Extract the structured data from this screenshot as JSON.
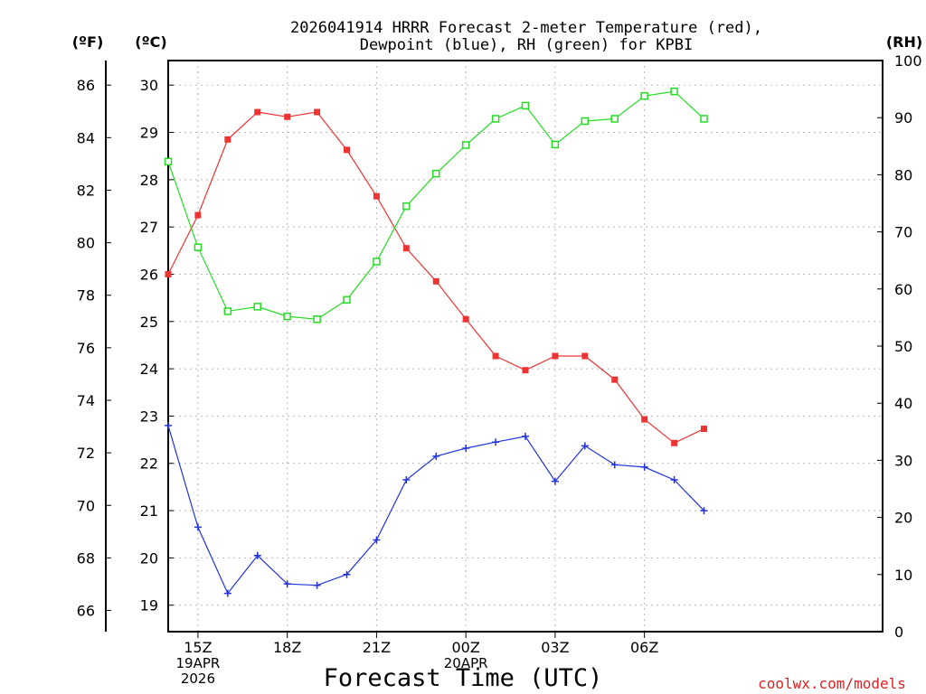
{
  "chart_data": {
    "type": "line",
    "title_lines": [
      "2026041914 HRRR Forecast 2-meter Temperature (red),",
      "Dewpoint (blue), RH (green) for KPBI"
    ],
    "xlabel": "Forecast Time (UTC)",
    "credit": "coolwx.com/models",
    "units": {
      "fahrenheit": "(ºF)",
      "celsius": "(ºC)",
      "rh": "(RH)"
    },
    "hour_range": [
      14,
      38
    ],
    "x_ticks": [
      {
        "hour": 15,
        "label": "15Z",
        "date": [
          "19APR",
          "2026"
        ]
      },
      {
        "hour": 18,
        "label": "18Z",
        "date": []
      },
      {
        "hour": 21,
        "label": "21Z",
        "date": []
      },
      {
        "hour": 24,
        "label": "00Z",
        "date": [
          "20APR"
        ]
      },
      {
        "hour": 27,
        "label": "03Z",
        "date": []
      },
      {
        "hour": 30,
        "label": "06Z",
        "date": []
      }
    ],
    "celsius_axis": {
      "range": [
        18.44,
        30.52
      ],
      "ticks": [
        19,
        20,
        21,
        22,
        23,
        24,
        25,
        26,
        27,
        28,
        29,
        30
      ]
    },
    "fahrenheit_axis": {
      "ticks": [
        66,
        68,
        70,
        72,
        74,
        76,
        78,
        80,
        82,
        84,
        86
      ]
    },
    "rh_axis": {
      "range": [
        0,
        100
      ],
      "ticks": [
        0,
        10,
        20,
        30,
        40,
        50,
        60,
        70,
        80,
        90,
        100
      ]
    },
    "series": [
      {
        "name": "2-meter Temperature",
        "axis": "celsius",
        "color": "#ee3333",
        "marker": "filled-square",
        "hours": [
          14,
          15,
          16,
          17,
          18,
          19,
          20,
          21,
          22,
          23,
          24,
          25,
          26,
          27,
          28,
          29,
          30,
          31,
          32
        ],
        "values": [
          26.0,
          27.25,
          28.85,
          29.43,
          29.33,
          29.43,
          28.63,
          27.65,
          26.55,
          25.85,
          25.05,
          24.27,
          23.97,
          24.27,
          24.27,
          23.77,
          22.93,
          22.43,
          22.73
        ]
      },
      {
        "name": "Dewpoint",
        "axis": "celsius",
        "color": "#2233dd",
        "marker": "plus",
        "hours": [
          14,
          15,
          16,
          17,
          18,
          19,
          20,
          21,
          22,
          23,
          24,
          25,
          26,
          27,
          28,
          29,
          30,
          31,
          32
        ],
        "values": [
          22.8,
          20.65,
          19.25,
          20.05,
          19.45,
          19.42,
          19.65,
          20.38,
          21.65,
          22.15,
          22.32,
          22.45,
          22.57,
          21.62,
          22.37,
          21.97,
          21.92,
          21.65,
          21.0
        ]
      },
      {
        "name": "RH",
        "axis": "rh",
        "color": "#22dd22",
        "marker": "open-square",
        "hours": [
          14,
          15,
          16,
          17,
          18,
          19,
          20,
          21,
          22,
          23,
          24,
          25,
          26,
          27,
          28,
          29,
          30,
          31,
          32
        ],
        "values": [
          82.3,
          67.3,
          56.1,
          56.9,
          55.2,
          54.7,
          58.1,
          64.8,
          74.5,
          80.2,
          85.2,
          89.8,
          92.1,
          85.3,
          89.4,
          89.8,
          93.8,
          94.6,
          89.8
        ]
      }
    ]
  }
}
